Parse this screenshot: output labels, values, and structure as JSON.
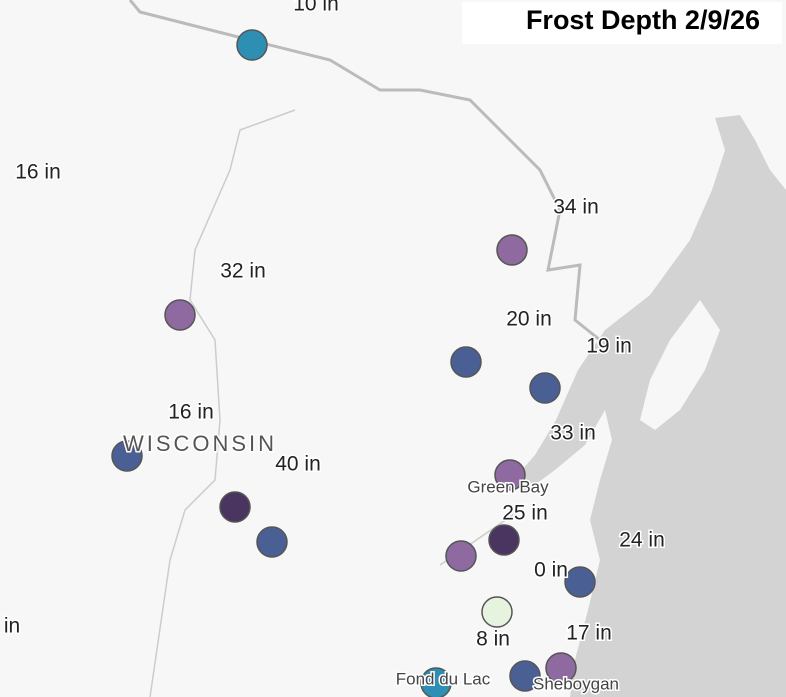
{
  "title": "Frost Depth 2/9/26",
  "depth_labels": [
    "10 in",
    "16 in",
    "34 in",
    "32 in",
    "20 in",
    "19 in",
    "16 in",
    "33 in",
    "40 in",
    "25 in",
    "24 in",
    "0 in",
    "8 in",
    "17 in",
    "in"
  ],
  "state": "WISCONSIN",
  "places": [
    "Green Bay",
    "Fond du Lac",
    "Sheboygan"
  ]
}
